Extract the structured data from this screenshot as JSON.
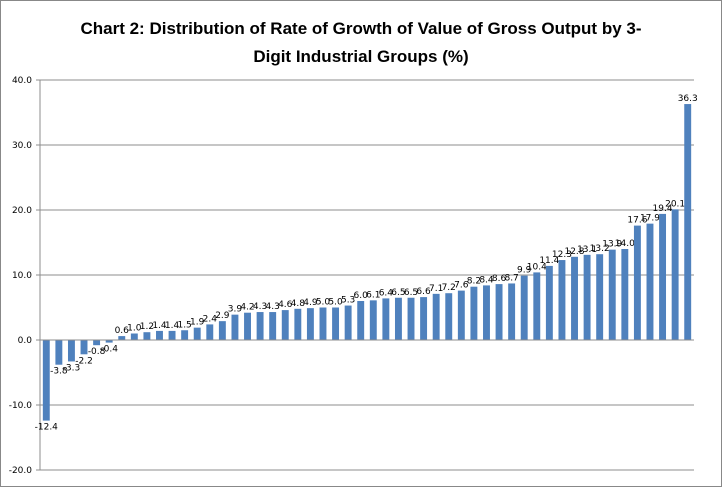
{
  "chart_data": {
    "type": "bar",
    "title": "Chart 2: Distribution of Rate of Growth of Value of Gross Output by 3-Digit Industrial Groups (%)",
    "title_line1": "Chart 2: Distribution of Rate of Growth of Value of Gross Output by 3-",
    "title_line2": "Digit Industrial Groups (%)",
    "xlabel": "",
    "ylabel": "",
    "ylim": [
      -20,
      40
    ],
    "yticks": [
      "40.0",
      "30.0",
      "20.0",
      "10.0",
      "0.0",
      "-10.0",
      "-20.0"
    ],
    "grid": true,
    "legend": "none",
    "bar_color": "#4f81bd",
    "values": [
      -12.4,
      -3.8,
      -3.3,
      -2.2,
      -0.8,
      -0.4,
      0.6,
      1.0,
      1.2,
      1.4,
      1.4,
      1.5,
      1.9,
      2.4,
      2.9,
      3.9,
      4.2,
      4.3,
      4.3,
      4.6,
      4.8,
      4.9,
      5.0,
      5.0,
      5.3,
      6.0,
      6.1,
      6.4,
      6.5,
      6.5,
      6.6,
      7.1,
      7.2,
      7.6,
      8.2,
      8.4,
      8.6,
      8.7,
      9.9,
      10.4,
      11.4,
      12.3,
      12.8,
      13.1,
      13.2,
      13.9,
      14.0,
      17.6,
      17.9,
      19.4,
      20.1,
      36.3
    ],
    "labels": [
      "-12.4",
      "-3.8",
      "-3.3",
      "-2.2",
      "-0.8",
      "-0.4",
      "0.6",
      "1.0",
      "1.2",
      "1.4",
      "1.4",
      "1.5",
      "1.9",
      "2.4",
      "2.9",
      "3.9",
      "4.2",
      "4.3",
      "4.3",
      "4.6",
      "4.8",
      "4.9",
      "5.0",
      "5.0",
      "5.3",
      "6.0",
      "6.1",
      "6.4",
      "6.5",
      "6.5",
      "6.6",
      "7.1",
      "7.2",
      "7.6",
      "8.2",
      "8.4",
      "8.6",
      "8.7",
      "9.9",
      "10.4",
      "11.4",
      "12.3",
      "12.8",
      "13.1",
      "13.2",
      "13.9",
      "14.0",
      "17.6",
      "17.9",
      "19.4",
      "20.1",
      "36.3"
    ]
  }
}
